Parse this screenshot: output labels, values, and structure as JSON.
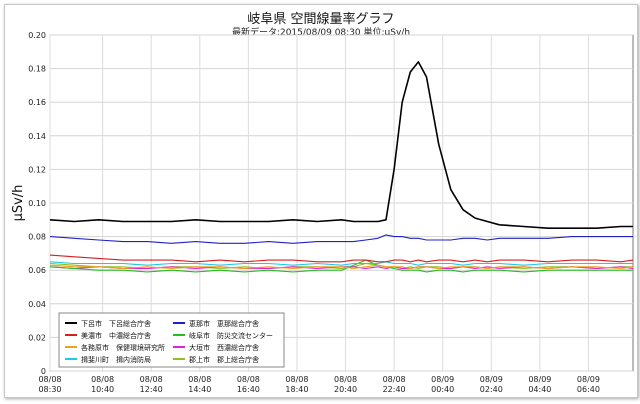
{
  "chart_data": {
    "type": "line",
    "title": "岐阜県 空間線量率グラフ",
    "subtitle": "最新データ:2015/08/09 08:30  単位:μSv/h",
    "ylabel": "μSv/h",
    "xlabel": "",
    "ylim": [
      0,
      0.2
    ],
    "y_ticks": [
      "0",
      "0.02",
      "0.04",
      "0.06",
      "0.08",
      "0.10",
      "0.12",
      "0.14",
      "0.16",
      "0.18",
      "0.20"
    ],
    "x_ticks": [
      {
        "date": "08/08",
        "time": "08:30"
      },
      {
        "date": "08/08",
        "time": "10:40"
      },
      {
        "date": "08/08",
        "time": "12:40"
      },
      {
        "date": "08/08",
        "time": "14:40"
      },
      {
        "date": "08/08",
        "time": "16:40"
      },
      {
        "date": "08/08",
        "time": "18:40"
      },
      {
        "date": "08/08",
        "time": "20:40"
      },
      {
        "date": "08/08",
        "time": "22:40"
      },
      {
        "date": "08/09",
        "time": "00:40"
      },
      {
        "date": "08/09",
        "time": "02:40"
      },
      {
        "date": "08/09",
        "time": "04:40"
      },
      {
        "date": "08/09",
        "time": "06:40"
      }
    ],
    "x": [
      "08/08 08:30",
      "08/08 09:30",
      "08/08 10:30",
      "08/08 11:30",
      "08/08 12:30",
      "08/08 13:30",
      "08/08 14:30",
      "08/08 15:30",
      "08/08 16:30",
      "08/08 17:30",
      "08/08 18:30",
      "08/08 19:30",
      "08/08 20:30",
      "08/08 21:00",
      "08/08 21:30",
      "08/08 22:00",
      "08/08 22:20",
      "08/08 22:40",
      "08/08 23:00",
      "08/08 23:20",
      "08/08 23:40",
      "08/09 00:00",
      "08/09 00:30",
      "08/09 01:00",
      "08/09 01:30",
      "08/09 02:00",
      "08/09 02:30",
      "08/09 03:00",
      "08/09 04:00",
      "08/09 05:00",
      "08/09 06:00",
      "08/09 07:00",
      "08/09 08:00",
      "08/09 08:30"
    ],
    "grid": true,
    "legend_position": "bottom-left",
    "series": [
      {
        "name": "下呂市　下呂総合庁舎",
        "color": "#000000",
        "values": [
          0.09,
          0.089,
          0.09,
          0.089,
          0.089,
          0.089,
          0.09,
          0.089,
          0.089,
          0.089,
          0.09,
          0.089,
          0.09,
          0.089,
          0.089,
          0.089,
          0.09,
          0.12,
          0.16,
          0.178,
          0.184,
          0.175,
          0.135,
          0.108,
          0.096,
          0.091,
          0.089,
          0.087,
          0.086,
          0.085,
          0.085,
          0.085,
          0.086,
          0.086
        ]
      },
      {
        "name": "美濃市　中濃総合庁舎",
        "color": "#d62020",
        "values": [
          0.069,
          0.068,
          0.067,
          0.066,
          0.066,
          0.066,
          0.065,
          0.066,
          0.065,
          0.066,
          0.066,
          0.065,
          0.065,
          0.066,
          0.066,
          0.065,
          0.065,
          0.066,
          0.066,
          0.065,
          0.066,
          0.065,
          0.066,
          0.066,
          0.065,
          0.066,
          0.065,
          0.066,
          0.066,
          0.065,
          0.066,
          0.066,
          0.065,
          0.066
        ]
      },
      {
        "name": "各務原市　保健環境研究所",
        "color": "#f0a020",
        "values": [
          0.063,
          0.062,
          0.062,
          0.061,
          0.062,
          0.061,
          0.062,
          0.062,
          0.061,
          0.062,
          0.061,
          0.062,
          0.062,
          0.061,
          0.062,
          0.063,
          0.062,
          0.062,
          0.062,
          0.061,
          0.062,
          0.062,
          0.061,
          0.062,
          0.062,
          0.062,
          0.061,
          0.062,
          0.062,
          0.061,
          0.062,
          0.062,
          0.061,
          0.062
        ]
      },
      {
        "name": "揖斐川町　揖内消防局",
        "color": "#20c8e8",
        "values": [
          0.065,
          0.064,
          0.064,
          0.064,
          0.063,
          0.064,
          0.064,
          0.063,
          0.064,
          0.064,
          0.063,
          0.064,
          0.063,
          0.064,
          0.064,
          0.064,
          0.065,
          0.064,
          0.064,
          0.064,
          0.063,
          0.064,
          0.064,
          0.064,
          0.063,
          0.064,
          0.064,
          0.064,
          0.063,
          0.064,
          0.064,
          0.064,
          0.064,
          0.064
        ]
      },
      {
        "name": "恵那市　恵那総合庁舎",
        "color": "#2020c8",
        "values": [
          0.08,
          0.079,
          0.078,
          0.077,
          0.077,
          0.076,
          0.077,
          0.076,
          0.076,
          0.077,
          0.076,
          0.077,
          0.077,
          0.077,
          0.078,
          0.079,
          0.081,
          0.08,
          0.08,
          0.079,
          0.079,
          0.078,
          0.078,
          0.078,
          0.079,
          0.079,
          0.078,
          0.079,
          0.079,
          0.079,
          0.08,
          0.08,
          0.08,
          0.08
        ]
      },
      {
        "name": "岐阜市　防災交流センター",
        "color": "#20c020",
        "values": [
          0.062,
          0.061,
          0.06,
          0.06,
          0.059,
          0.06,
          0.059,
          0.06,
          0.059,
          0.06,
          0.059,
          0.06,
          0.06,
          0.063,
          0.066,
          0.063,
          0.062,
          0.061,
          0.06,
          0.06,
          0.06,
          0.059,
          0.06,
          0.06,
          0.059,
          0.06,
          0.06,
          0.06,
          0.059,
          0.06,
          0.06,
          0.06,
          0.06,
          0.06
        ]
      },
      {
        "name": "大垣市　西濃総合庁舎",
        "color": "#e020e0",
        "values": [
          0.062,
          0.061,
          0.062,
          0.061,
          0.061,
          0.062,
          0.061,
          0.062,
          0.061,
          0.061,
          0.062,
          0.061,
          0.062,
          0.062,
          0.061,
          0.062,
          0.061,
          0.062,
          0.061,
          0.061,
          0.062,
          0.062,
          0.061,
          0.061,
          0.062,
          0.061,
          0.062,
          0.061,
          0.062,
          0.061,
          0.062,
          0.061,
          0.062,
          0.061
        ]
      },
      {
        "name": "郡上市　郡上総合庁舎",
        "color": "#90c020",
        "values": [
          0.064,
          0.063,
          0.062,
          0.062,
          0.061,
          0.062,
          0.062,
          0.061,
          0.062,
          0.061,
          0.062,
          0.062,
          0.061,
          0.062,
          0.064,
          0.063,
          0.062,
          0.062,
          0.061,
          0.062,
          0.061,
          0.062,
          0.062,
          0.061,
          0.062,
          0.062,
          0.061,
          0.062,
          0.061,
          0.062,
          0.062,
          0.061,
          0.062,
          0.062
        ]
      }
    ]
  }
}
